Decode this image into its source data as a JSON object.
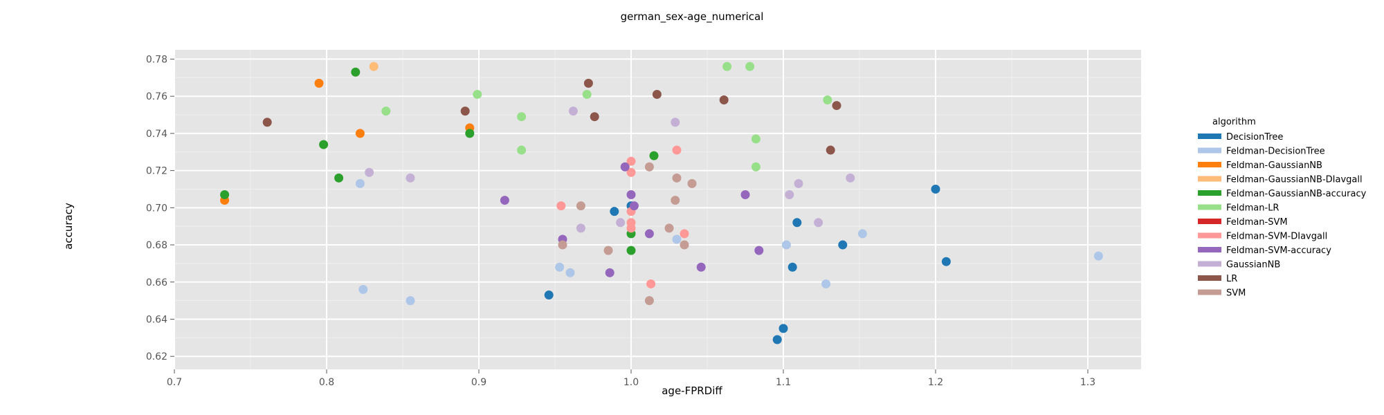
{
  "chart_data": {
    "type": "scatter",
    "title": "german_sex-age_numerical",
    "xlabel": "age-FPRDiff",
    "ylabel": "accuracy",
    "xlim": [
      0.7,
      1.335
    ],
    "ylim": [
      0.613,
      0.785
    ],
    "xticks": [
      "0.7",
      "0.8",
      "0.9",
      "1.0",
      "1.1",
      "1.2",
      "1.3"
    ],
    "yticks": [
      "0.62",
      "0.64",
      "0.66",
      "0.68",
      "0.70",
      "0.72",
      "0.74",
      "0.76",
      "0.78"
    ],
    "grid": true,
    "legend_title": "algorithm",
    "legend_position": "right",
    "series": [
      {
        "name": "DecisionTree",
        "color": "#1f77b4",
        "points": [
          [
            0.946,
            0.653
          ],
          [
            0.989,
            0.698
          ],
          [
            1.0,
            0.701
          ],
          [
            1.096,
            0.629
          ],
          [
            1.1,
            0.635
          ],
          [
            1.106,
            0.668
          ],
          [
            1.109,
            0.692
          ],
          [
            1.139,
            0.68
          ],
          [
            1.2,
            0.71
          ],
          [
            1.207,
            0.671
          ]
        ]
      },
      {
        "name": "Feldman-DecisionTree",
        "color": "#aec7e8",
        "points": [
          [
            0.822,
            0.713
          ],
          [
            0.824,
            0.656
          ],
          [
            0.855,
            0.65
          ],
          [
            0.953,
            0.668
          ],
          [
            0.96,
            0.665
          ],
          [
            1.03,
            0.683
          ],
          [
            1.102,
            0.68
          ],
          [
            1.128,
            0.659
          ],
          [
            1.152,
            0.686
          ],
          [
            1.307,
            0.674
          ]
        ]
      },
      {
        "name": "Feldman-GaussianNB",
        "color": "#ff7f0e",
        "points": [
          [
            0.733,
            0.704
          ],
          [
            0.795,
            0.767
          ],
          [
            0.822,
            0.74
          ],
          [
            0.894,
            0.743
          ]
        ]
      },
      {
        "name": "Feldman-GaussianNB-DIavgall",
        "color": "#ffbb78",
        "points": [
          [
            0.831,
            0.776
          ]
        ]
      },
      {
        "name": "Feldman-GaussianNB-accuracy",
        "color": "#2ca02c",
        "points": [
          [
            0.733,
            0.707
          ],
          [
            0.798,
            0.734
          ],
          [
            0.808,
            0.716
          ],
          [
            0.819,
            0.773
          ],
          [
            0.894,
            0.74
          ],
          [
            1.0,
            0.677
          ],
          [
            1.0,
            0.686
          ],
          [
            1.015,
            0.728
          ]
        ]
      },
      {
        "name": "Feldman-LR",
        "color": "#98df8a",
        "points": [
          [
            0.839,
            0.752
          ],
          [
            0.899,
            0.761
          ],
          [
            0.928,
            0.731
          ],
          [
            0.928,
            0.749
          ],
          [
            0.971,
            0.761
          ],
          [
            1.063,
            0.776
          ],
          [
            1.078,
            0.776
          ],
          [
            1.082,
            0.737
          ],
          [
            1.082,
            0.722
          ],
          [
            1.129,
            0.758
          ]
        ]
      },
      {
        "name": "Feldman-SVM",
        "color": "#d62728",
        "points": []
      },
      {
        "name": "Feldman-SVM-DIavgall",
        "color": "#ff9896",
        "points": [
          [
            0.954,
            0.701
          ],
          [
            1.0,
            0.725
          ],
          [
            1.0,
            0.719
          ],
          [
            1.0,
            0.698
          ],
          [
            1.0,
            0.692
          ],
          [
            1.0,
            0.689
          ],
          [
            1.013,
            0.659
          ],
          [
            1.03,
            0.731
          ],
          [
            1.035,
            0.686
          ]
        ]
      },
      {
        "name": "Feldman-SVM-accuracy",
        "color": "#9467bd",
        "points": [
          [
            0.917,
            0.704
          ],
          [
            0.955,
            0.683
          ],
          [
            0.986,
            0.665
          ],
          [
            0.996,
            0.722
          ],
          [
            1.0,
            0.707
          ],
          [
            1.002,
            0.701
          ],
          [
            1.012,
            0.686
          ],
          [
            1.046,
            0.668
          ],
          [
            1.075,
            0.707
          ],
          [
            1.084,
            0.677
          ]
        ]
      },
      {
        "name": "GaussianNB",
        "color": "#c5b0d5",
        "points": [
          [
            0.828,
            0.719
          ],
          [
            0.855,
            0.716
          ],
          [
            0.962,
            0.752
          ],
          [
            0.967,
            0.689
          ],
          [
            0.993,
            0.692
          ],
          [
            1.029,
            0.746
          ],
          [
            1.104,
            0.707
          ],
          [
            1.11,
            0.713
          ],
          [
            1.123,
            0.692
          ],
          [
            1.144,
            0.716
          ]
        ]
      },
      {
        "name": "LR",
        "color": "#8c564b",
        "points": [
          [
            0.761,
            0.746
          ],
          [
            0.891,
            0.752
          ],
          [
            0.972,
            0.767
          ],
          [
            0.976,
            0.749
          ],
          [
            1.017,
            0.761
          ],
          [
            1.061,
            0.758
          ],
          [
            1.131,
            0.731
          ],
          [
            1.135,
            0.755
          ]
        ]
      },
      {
        "name": "SVM",
        "color": "#c49c94",
        "points": [
          [
            0.955,
            0.68
          ],
          [
            0.967,
            0.701
          ],
          [
            0.985,
            0.677
          ],
          [
            1.012,
            0.722
          ],
          [
            1.012,
            0.65
          ],
          [
            1.025,
            0.689
          ],
          [
            1.029,
            0.704
          ],
          [
            1.03,
            0.716
          ],
          [
            1.035,
            0.68
          ],
          [
            1.04,
            0.713
          ]
        ]
      }
    ]
  }
}
